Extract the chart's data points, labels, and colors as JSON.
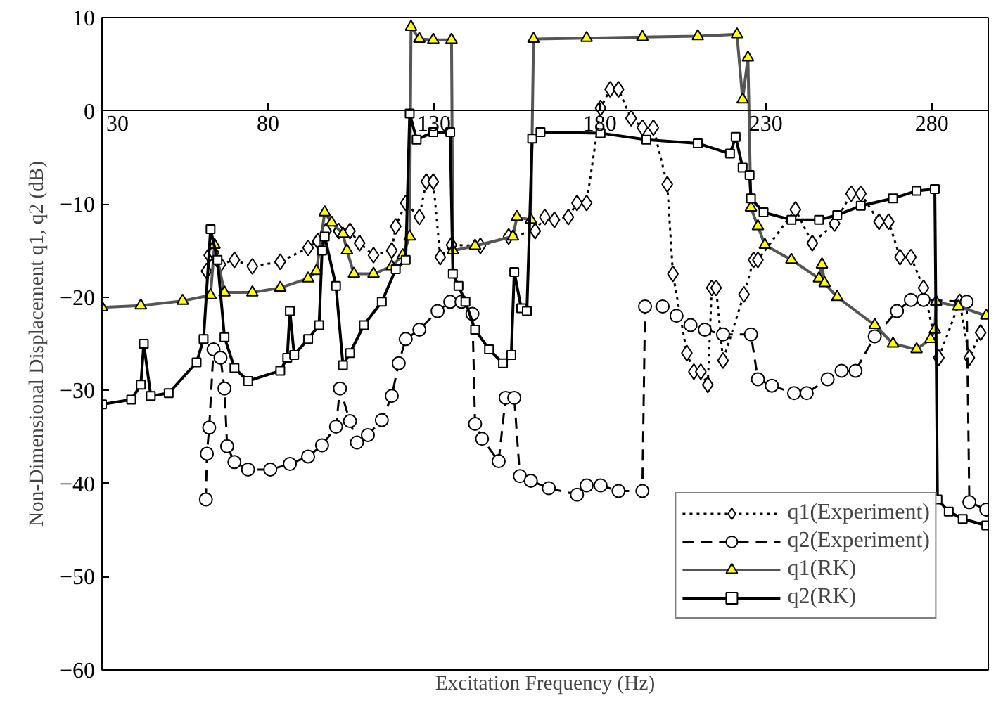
{
  "chart_data": {
    "type": "line",
    "xlabel": "Excitation Frequency (Hz)",
    "ylabel": "Non-Dimensional Displacement q1, q2 (dB)",
    "xlim": [
      30,
      297
    ],
    "ylim": [
      -60,
      10
    ],
    "xticks": [
      30,
      80,
      130,
      180,
      230,
      280
    ],
    "yticks": [
      -60,
      -50,
      -40,
      -30,
      -20,
      -10,
      0,
      10
    ],
    "grid": false,
    "legend": "bottom right",
    "series": [
      {
        "name": "q1(Experiment)",
        "color": "#ffffff",
        "marker": "diamond",
        "line_style": "dotted",
        "x": [
          61.5,
          62.3,
          63.6,
          65.7,
          69.9,
          75.3,
          83.7,
          92.1,
          95,
          97.5,
          101.3,
          104.7,
          107.6,
          111.8,
          117.3,
          118.5,
          121.5,
          125.6,
          127.7,
          129.8,
          131.9,
          135.3,
          144,
          152.5,
          160.5,
          163.4,
          166.3,
          170.5,
          173.1,
          176,
          180.2,
          183.1,
          185.6,
          189.4,
          192.8,
          196.1,
          200.3,
          202,
          206.2,
          208.3,
          210.4,
          212.5,
          213.7,
          215,
          217.1,
          223.4,
          226.3,
          227.6,
          238.9,
          244,
          250.7,
          255.7,
          258.6,
          264.1,
          267,
          270.4,
          273.7,
          277.5,
          282.1,
          288.4,
          291.3,
          294.7
        ],
        "values": [
          -17.2,
          -15.5,
          -15.2,
          -16.5,
          -16,
          -16.7,
          -16.2,
          -14.7,
          -14,
          -12.9,
          -12.9,
          -12.9,
          -14.2,
          -15.5,
          -15,
          -12.4,
          -9.9,
          -11.4,
          -7.6,
          -7.6,
          -15.7,
          -14.4,
          -14.5,
          -13.5,
          -12.9,
          -11.4,
          -11.7,
          -11.4,
          -9.9,
          -9.9,
          0.3,
          2.3,
          2.3,
          -0.8,
          -1.8,
          -1.8,
          -7.9,
          -17.5,
          -26,
          -28,
          -28,
          -29.4,
          -19,
          -19,
          -26.8,
          -19.7,
          -16,
          -16,
          -10.6,
          -14.2,
          -12.1,
          -8.9,
          -8.9,
          -11.9,
          -11.9,
          -15.7,
          -15.7,
          -19,
          -26.5,
          -20.5,
          -26.5,
          -23.8
        ]
      },
      {
        "name": "q2(Experiment)",
        "color": "#ffffff",
        "marker": "circle",
        "line_style": "dashed",
        "x": [
          61.3,
          61.6,
          62.3,
          63.6,
          65.7,
          66.9,
          67.7,
          69.9,
          74.0,
          80.7,
          86.6,
          92.1,
          96.3,
          100.5,
          101.7,
          104.7,
          106.8,
          110.1,
          114.3,
          117.3,
          119.4,
          121.5,
          125.6,
          131.1,
          134.9,
          138.3,
          141.6,
          142.4,
          144.5,
          149.5,
          151.6,
          154.2,
          155.9,
          159.2,
          164.6,
          173.1,
          176,
          180.2,
          185.6,
          192.8,
          193.6,
          198.9,
          203.1,
          207.3,
          211.6,
          217.1,
          225.5,
          227.6,
          231.8,
          238.5,
          242.3,
          248.6,
          252.8,
          257,
          262.8,
          269.5,
          273.7,
          277.5,
          290.5,
          291.3,
          296.4
        ],
        "values": [
          -41.7,
          -36.8,
          -34,
          -25.6,
          -26.5,
          -29.8,
          -36,
          -37.7,
          -38.5,
          -38.5,
          -37.9,
          -37.1,
          -35.9,
          -33.9,
          -29.8,
          -33.3,
          -35.6,
          -34.8,
          -33.2,
          -30.6,
          -27.1,
          -24.5,
          -23.5,
          -21.5,
          -20.5,
          -20.5,
          -21.8,
          -33.6,
          -35.2,
          -37.6,
          -30.8,
          -30.8,
          -39.2,
          -39.7,
          -40.5,
          -41.2,
          -40.2,
          -40.2,
          -40.8,
          -40.8,
          -21,
          -21,
          -22,
          -23,
          -23.5,
          -24,
          -24,
          -28.8,
          -29.5,
          -30.3,
          -30.3,
          -28.8,
          -27.9,
          -27.9,
          -24.2,
          -21.5,
          -20.3,
          -20.3,
          -20.5,
          -42,
          -42.8
        ]
      },
      {
        "name": "q1(RK)",
        "color": "#ffff00",
        "marker": "triangle",
        "line_style": "solid",
        "x": [
          30,
          41.7,
          54.3,
          62.7,
          63.9,
          66.9,
          75.3,
          83.7,
          92.1,
          94.6,
          97.1,
          99.2,
          102.6,
          103.8,
          105.9,
          111.8,
          117.3,
          120.6,
          122.7,
          123.1,
          125.6,
          129.8,
          135.3,
          135.7,
          142.4,
          153.8,
          155.0,
          159.2,
          160.0,
          176,
          192.8,
          209.5,
          221.3,
          223,
          224.6,
          225.5,
          227.6,
          229.7,
          237.7,
          246,
          246.9,
          247.7,
          251.5,
          262.8,
          268.3,
          275.4,
          279.6,
          280.9,
          281.3,
          288,
          296.4
        ],
        "values": [
          -21.1,
          -20.9,
          -20.4,
          -19.8,
          -14.4,
          -19.5,
          -19.5,
          -19,
          -18,
          -17.2,
          -10.9,
          -12,
          -13.2,
          -15,
          -17.5,
          -17.5,
          -16.7,
          -15.5,
          -13.5,
          9.0,
          7.7,
          7.6,
          7.6,
          -15,
          -14.5,
          -13.5,
          -11.4,
          -11.7,
          7.7,
          7.8,
          7.9,
          8.0,
          8.2,
          1.2,
          5.7,
          -10.4,
          -12.4,
          -14.4,
          -16,
          -18,
          -16.5,
          -18.5,
          -20,
          -23,
          -25,
          -25.6,
          -24.5,
          -23.5,
          -20.5,
          -21,
          -22
        ]
      },
      {
        "name": "q2(RK)",
        "color": "#ffffff",
        "marker": "square",
        "line_style": "solid",
        "x": [
          30,
          38.8,
          41.7,
          42.6,
          44.7,
          50.1,
          58.5,
          60.6,
          62.7,
          64.8,
          66.9,
          69.9,
          74.0,
          83.7,
          85.8,
          86.6,
          87.9,
          92.1,
          95.4,
          96.3,
          97.1,
          100.5,
          102.6,
          104.7,
          108.9,
          114.3,
          118.5,
          121.5,
          122.7,
          124.8,
          129.8,
          134.9,
          135.7,
          137.4,
          139.5,
          142.4,
          146.6,
          150.8,
          153.3,
          154.2,
          156.3,
          158,
          159.6,
          162.1,
          180.2,
          194,
          209.5,
          219.2,
          220.9,
          223,
          225.1,
          225.5,
          229.3,
          237.7,
          246,
          251.5,
          258.6,
          268.3,
          275.4,
          280.9,
          281.7,
          285.1,
          289.3,
          296.4
        ],
        "values": [
          -31.5,
          -31,
          -29.4,
          -25,
          -30.6,
          -30.3,
          -27,
          -24.5,
          -12.7,
          -16,
          -24.3,
          -27.6,
          -29,
          -27.9,
          -26.5,
          -21.5,
          -26.2,
          -24.5,
          -23,
          -15,
          -13.5,
          -18.8,
          -27.3,
          -26,
          -23,
          -20.5,
          -17,
          -16,
          -0.3,
          -3.1,
          -2.3,
          -2.3,
          -17.5,
          -18.8,
          -20.5,
          -23.5,
          -25.6,
          -27.1,
          -26.2,
          -17.3,
          -21.2,
          -21.5,
          -3,
          -2.3,
          -2.4,
          -3.1,
          -3.5,
          -4.6,
          -2.8,
          -6.1,
          -6.9,
          -9.4,
          -10.9,
          -11.7,
          -11.7,
          -11.2,
          -10.2,
          -9.4,
          -8.6,
          -8.4,
          -41.7,
          -43,
          -43.8,
          -44.5
        ]
      }
    ]
  }
}
